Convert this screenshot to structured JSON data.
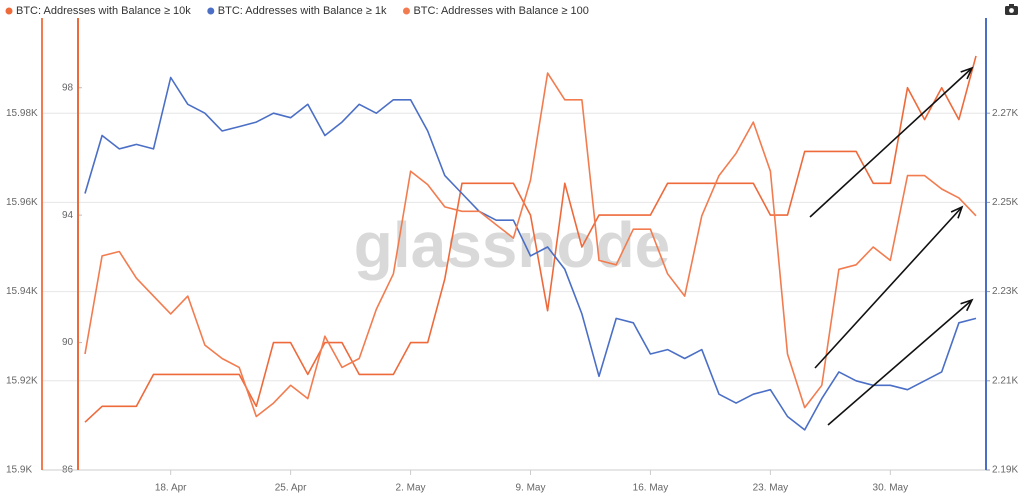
{
  "chart_data": {
    "type": "line",
    "watermark": "glassnode",
    "x": [
      "13. Apr",
      "14. Apr",
      "15. Apr",
      "16. Apr",
      "17. Apr",
      "18. Apr",
      "19. Apr",
      "20. Apr",
      "21. Apr",
      "22. Apr",
      "23. Apr",
      "24. Apr",
      "25. Apr",
      "26. Apr",
      "27. Apr",
      "28. Apr",
      "29. Apr",
      "30. Apr",
      "1. May",
      "2. May",
      "3. May",
      "4. May",
      "5. May",
      "6. May",
      "7. May",
      "8. May",
      "9. May",
      "10. May",
      "11. May",
      "12. May",
      "13. May",
      "14. May",
      "15. May",
      "16. May",
      "17. May",
      "18. May",
      "19. May",
      "20. May",
      "21. May",
      "22. May",
      "23. May",
      "24. May",
      "25. May",
      "26. May",
      "27. May",
      "28. May",
      "29. May",
      "30. May",
      "31. May",
      "1. Jun",
      "2. Jun",
      "3. Jun",
      "4. Jun"
    ],
    "xticks": [
      "18. Apr",
      "25. Apr",
      "2. May",
      "9. May",
      "16. May",
      "23. May",
      "30. May"
    ],
    "series": [
      {
        "name": "BTC: Addresses with Balance ≥ 10k",
        "color": "#ee6a3b",
        "axis": "y3",
        "values": [
          87.5,
          88,
          88,
          88,
          89,
          89,
          89,
          89,
          89,
          89,
          88,
          90,
          90,
          89,
          90,
          90,
          89,
          89,
          89,
          90,
          90,
          92,
          95,
          95,
          95,
          95,
          94,
          91,
          95,
          93,
          94,
          94,
          94,
          94,
          95,
          95,
          95,
          95,
          95,
          95,
          94,
          94,
          96,
          96,
          96,
          96,
          95,
          95,
          98,
          97,
          98,
          97,
          99
        ]
      },
      {
        "name": "BTC: Addresses with Balance ≥ 1k",
        "color": "#4b6fc6",
        "axis": "y2",
        "values": [
          2252,
          2265,
          2262,
          2263,
          2262,
          2278,
          2272,
          2270,
          2266,
          2267,
          2268,
          2270,
          2269,
          2272,
          2265,
          2268,
          2272,
          2270,
          2273,
          2273,
          2266,
          2256,
          2252,
          2248,
          2246,
          2246,
          2238,
          2240,
          2235,
          2225,
          2211,
          2224,
          2223,
          2216,
          2217,
          2215,
          2217,
          2207,
          2205,
          2207,
          2208,
          2202,
          2199,
          2206,
          2212,
          2210,
          2209,
          2209,
          2208,
          2210,
          2212,
          2223,
          2224
        ]
      },
      {
        "name": "BTC: Addresses with Balance ≥ 100",
        "color": "#f27c4f",
        "axis": "y",
        "values": [
          15926,
          15948,
          15949,
          15943,
          15939,
          15935,
          15939,
          15928,
          15925,
          15923,
          15912,
          15915,
          15919,
          15916,
          15930,
          15923,
          15925,
          15936,
          15944,
          15967,
          15964,
          15959,
          15958,
          15958,
          15955,
          15952,
          15965,
          15989,
          15983,
          15983,
          15947,
          15946,
          15954,
          15954,
          15944,
          15939,
          15957,
          15966,
          15971,
          15978,
          15967,
          15926,
          15914,
          15919,
          15945,
          15946,
          15950,
          15947,
          15966,
          15966,
          15963,
          15961,
          15957
        ]
      }
    ],
    "ylim": [
      15900,
      16000
    ],
    "yticks": [
      {
        "value": 15900,
        "label": "15.9K"
      },
      {
        "value": 15920,
        "label": "15.92K"
      },
      {
        "value": 15940,
        "label": "15.94K"
      },
      {
        "value": 15960,
        "label": "15.96K"
      },
      {
        "value": 15980,
        "label": "15.98K"
      }
    ],
    "y2lim": [
      2190,
      2290
    ],
    "y2ticks": [
      {
        "value": 2190,
        "label": "2.19K"
      },
      {
        "value": 2210,
        "label": "2.21K"
      },
      {
        "value": 2230,
        "label": "2.23K"
      },
      {
        "value": 2250,
        "label": "2.25K"
      },
      {
        "value": 2270,
        "label": "2.27K"
      }
    ],
    "y3lim": [
      86,
      100
    ],
    "y3ticks": [
      86,
      90,
      94,
      98
    ],
    "grid": true
  }
}
